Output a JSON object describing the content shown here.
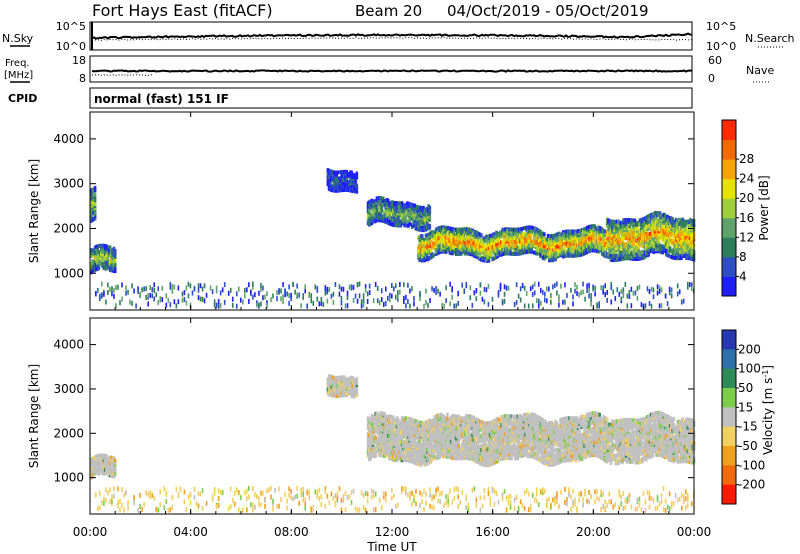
{
  "header": {
    "station": "Fort Hays East (fitACF)",
    "beam": "Beam 20",
    "date_range": "04/Oct/2019 - 05/Oct/2019"
  },
  "status": {
    "nsky_label": "N.Sky",
    "nsearch_label": "N.Search",
    "freq_label_top": "Freq.",
    "freq_label_unit": "[MHz]",
    "nave_label": "Nave",
    "cpid_label": "CPID",
    "cpid_value": "normal (fast) 151 IF",
    "noise_left_ticks": [
      "10^5",
      "10^0"
    ],
    "noise_right_ticks": [
      "10^5",
      "10^0"
    ],
    "freq_ticks": [
      18,
      8
    ],
    "nave_ticks": [
      60,
      0
    ]
  },
  "chart_data": [
    {
      "type": "heatmap",
      "name": "power",
      "ylabel": "Slant Range [km]",
      "x_range_hours": [
        0,
        24
      ],
      "ylim": [
        180,
        4600
      ],
      "y_ticks": [
        1000,
        2000,
        3000,
        4000
      ],
      "colorbar": {
        "label": "Power [dB]",
        "ticks": [
          4,
          8,
          12,
          16,
          20,
          24,
          28
        ],
        "colors": [
          "#1e1eff",
          "#2e4fc4",
          "#2e7d5c",
          "#5fa36a",
          "#9fcf3a",
          "#e6e200",
          "#f5a500",
          "#f06a00",
          "#ff2a00"
        ]
      },
      "echo_regions": [
        {
          "t_start": 0.0,
          "t_end": 0.2,
          "r_center": 2500,
          "r_width": 700,
          "level": 0.5
        },
        {
          "t_start": 0.0,
          "t_end": 1.0,
          "r_center": 1250,
          "r_width": 500,
          "level": 0.55
        },
        {
          "t_start": 9.4,
          "t_end": 10.6,
          "r_center": 3100,
          "r_width": 450,
          "level": 0.15
        },
        {
          "t_start": 11.0,
          "t_end": 13.5,
          "r_center": 2300,
          "r_width": 500,
          "level": 0.45
        },
        {
          "t_start": 13.0,
          "t_end": 20.5,
          "r_center": 1650,
          "r_width": 550,
          "level": 0.8
        },
        {
          "t_start": 20.5,
          "t_end": 24.0,
          "r_center": 1800,
          "r_width": 900,
          "level": 0.75
        }
      ]
    },
    {
      "type": "heatmap",
      "name": "velocity",
      "ylabel": "Slant Range [km]",
      "xlabel": "Time UT",
      "x_range_hours": [
        0,
        24
      ],
      "x_tick_labels": [
        "00:00",
        "04:00",
        "08:00",
        "12:00",
        "16:00",
        "20:00",
        "00:00"
      ],
      "ylim": [
        180,
        4600
      ],
      "y_ticks": [
        1000,
        2000,
        3000,
        4000
      ],
      "colorbar": {
        "label": "Velocity [m s^-1]",
        "ticks": [
          "200",
          "100",
          "50",
          "15",
          "-15",
          "-50",
          "-100",
          "-200"
        ],
        "colors": [
          "#2838b0",
          "#2f6fa8",
          "#2e8b57",
          "#7ccd4a",
          "#c0c0c0",
          "#f0d060",
          "#f0a020",
          "#f06a10",
          "#ff1a00"
        ]
      },
      "echo_regions": [
        {
          "t_start": 0.0,
          "t_end": 1.0,
          "r_center": 1200,
          "r_width": 450,
          "level": 0.5
        },
        {
          "t_start": 9.4,
          "t_end": 10.6,
          "r_center": 3100,
          "r_width": 450,
          "level": 0.5
        },
        {
          "t_start": 11.0,
          "t_end": 24.0,
          "r_center": 1850,
          "r_width": 950,
          "level": 0.5
        }
      ]
    }
  ]
}
